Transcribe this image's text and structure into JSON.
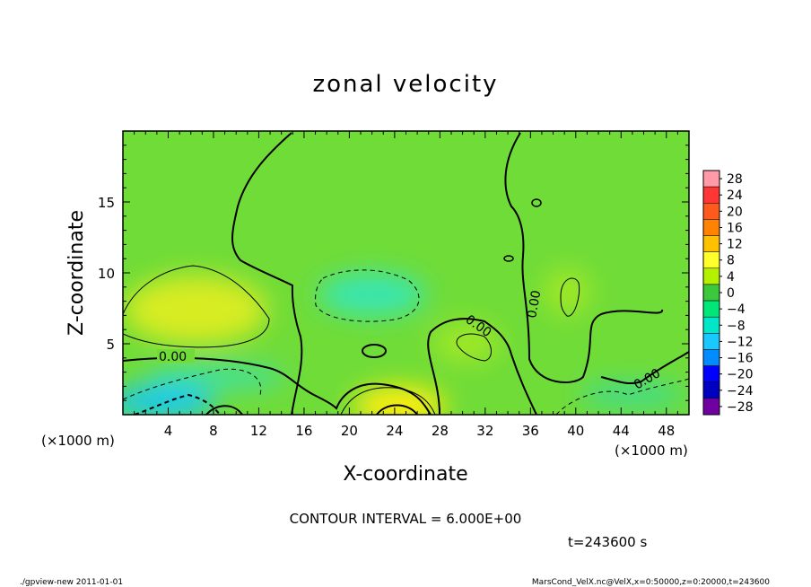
{
  "chart_data": {
    "type": "heatmap",
    "title": "zonal velocity",
    "xlabel": "X-coordinate",
    "ylabel": "Z-coordinate",
    "x_unit": "(×1000 m)",
    "y_unit": "(×1000 m)",
    "xlim": [
      0,
      50
    ],
    "ylim": [
      0,
      20
    ],
    "x_ticks": [
      "4",
      "8",
      "12",
      "16",
      "20",
      "24",
      "28",
      "32",
      "36",
      "40",
      "44",
      "48"
    ],
    "y_ticks": [
      "5",
      "10",
      "15"
    ],
    "colorbar": {
      "levels": [
        "28",
        "24",
        "20",
        "16",
        "12",
        "8",
        "4",
        "0",
        "−4",
        "−8",
        "−12",
        "−16",
        "−20",
        "−24",
        "−28"
      ],
      "colors": [
        "#ff9aa8",
        "#ff3636",
        "#ff5a1e",
        "#ff8200",
        "#ffc000",
        "#ffff2c",
        "#b4f000",
        "#3cc83c",
        "#00e678",
        "#00e6c8",
        "#18c8ff",
        "#008cff",
        "#0000ff",
        "#0000c0",
        "#7000a0"
      ]
    },
    "contour_labels": [
      "0.00",
      "0.00",
      "0.00",
      "0.00"
    ],
    "contour_interval": "CONTOUR INTERVAL = 6.000E+00",
    "time": "t=243600 s",
    "regions": [
      {
        "x": 5,
        "z": 6.5,
        "value": 7
      },
      {
        "x": 24,
        "z": 0.5,
        "value": 9
      },
      {
        "x": 22,
        "z": 8.5,
        "value": -7
      },
      {
        "x": 4,
        "z": 1.0,
        "value": -8
      },
      {
        "x": 31,
        "z": 5,
        "value": 3
      },
      {
        "x": 39,
        "z": 8,
        "value": 3
      }
    ]
  },
  "footer": {
    "left": "./gpview-new  2011-01-01",
    "right": "MarsCond_VelX.nc@VelX,x=0:50000,z=0:20000,t=243600"
  }
}
